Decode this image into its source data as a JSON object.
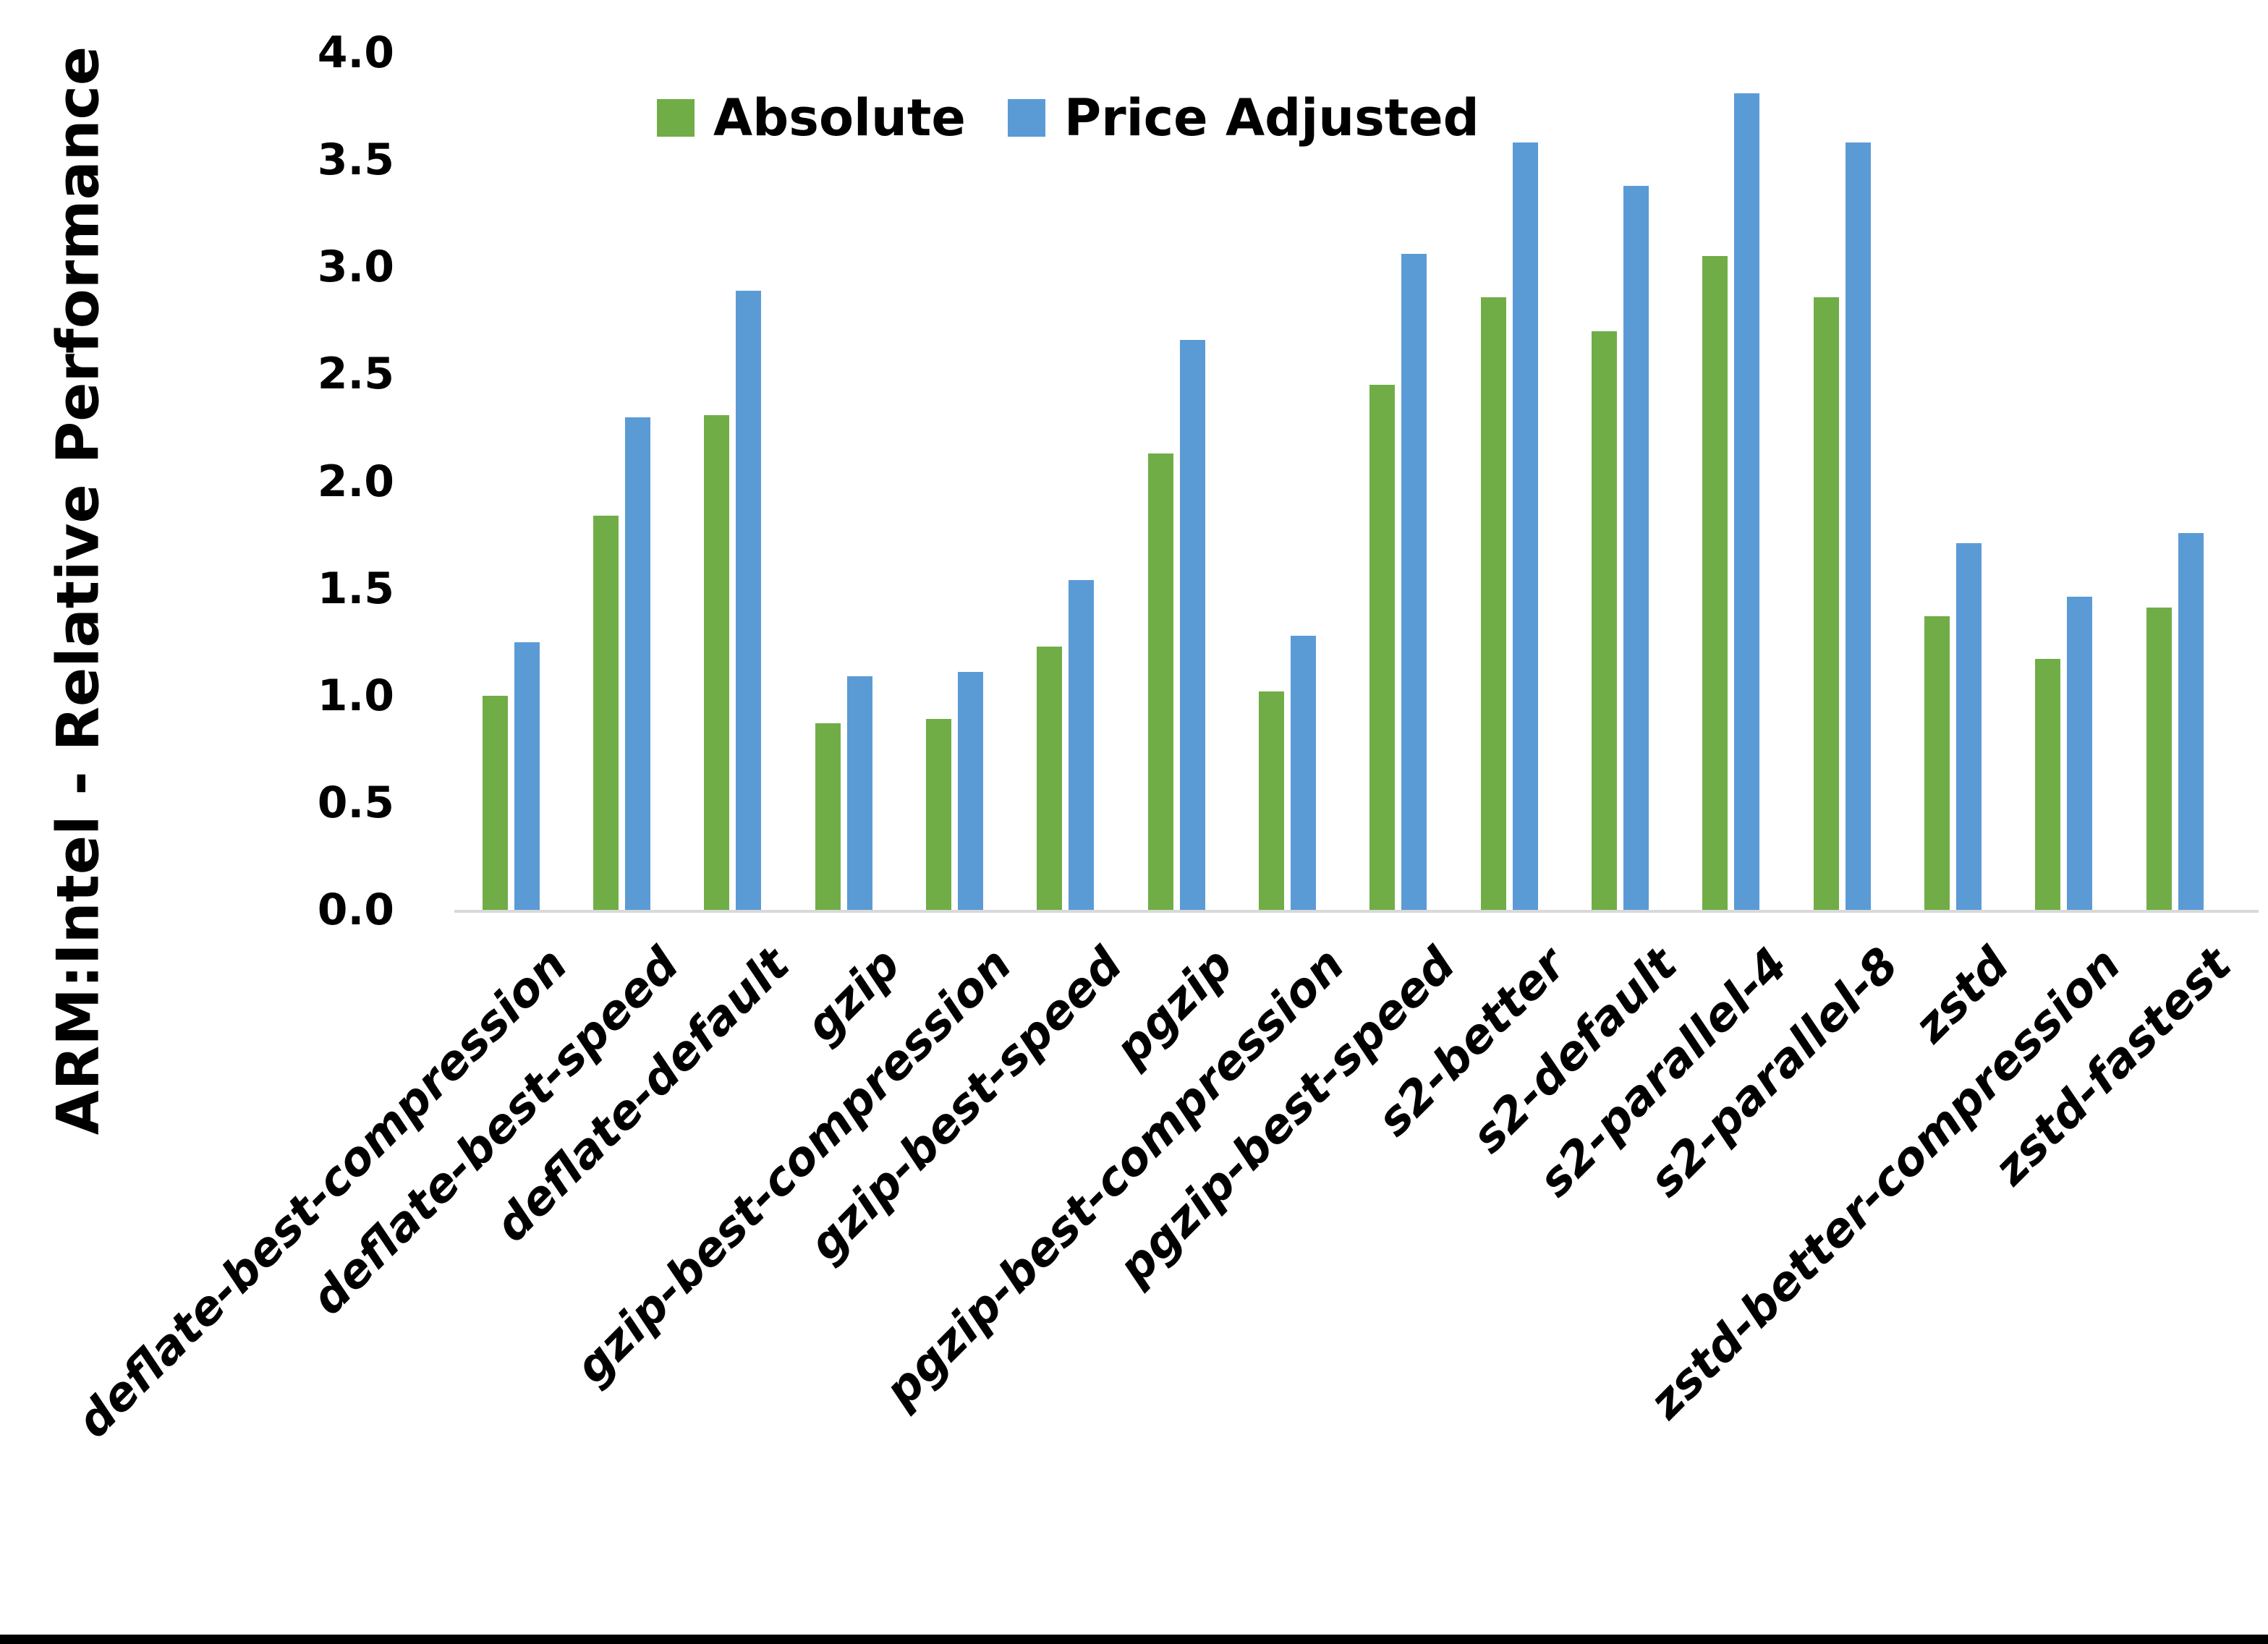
{
  "chart": {
    "y_axis_title": "ARM:Intel - Relative Performance",
    "y_tick_labels": [
      "0.0",
      "0.5",
      "1.0",
      "1.5",
      "2.0",
      "2.5",
      "3.0",
      "3.5",
      "4.0"
    ],
    "legend": {
      "absolute_label": "Absolute",
      "price_adjusted_label": "Price Adjusted"
    },
    "colors": {
      "absolute": "#70AD47",
      "price_adjusted": "#5B9BD5",
      "axis_line": "#D9D9D9",
      "text": "#000000"
    }
  },
  "chart_data": {
    "type": "bar",
    "title": "",
    "xlabel": "",
    "ylabel": "ARM:Intel - Relative Performance",
    "ylim": [
      0.0,
      4.0
    ],
    "y_tick_step": 0.5,
    "grid": false,
    "legend_position": "top-center",
    "categories": [
      "deflate-best-compression",
      "deflate-best-speed",
      "deflate-default",
      "gzip",
      "gzip-best-compression",
      "gzip-best-speed",
      "pgzip",
      "pgzip-best-compression",
      "pgzip-best-speed",
      "s2-better",
      "s2-default",
      "s2-parallel-4",
      "s2-parallel-8",
      "zstd",
      "zstd-better-compression",
      "zstd-fastest"
    ],
    "series": [
      {
        "name": "Absolute",
        "color": "#70AD47",
        "values": [
          1.0,
          1.84,
          2.31,
          0.87,
          0.89,
          1.23,
          2.13,
          1.02,
          2.45,
          2.86,
          2.7,
          3.05,
          2.86,
          1.37,
          1.17,
          1.41
        ]
      },
      {
        "name": "Price Adjusted",
        "color": "#5B9BD5",
        "values": [
          1.25,
          2.3,
          2.89,
          1.09,
          1.11,
          1.54,
          2.66,
          1.28,
          3.06,
          3.58,
          3.38,
          3.81,
          3.58,
          1.71,
          1.46,
          1.76
        ]
      }
    ]
  }
}
